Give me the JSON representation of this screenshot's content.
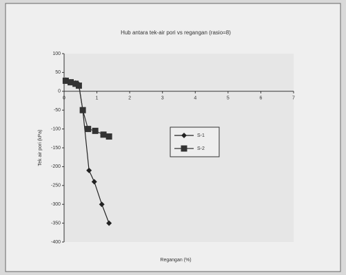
{
  "chart_data": {
    "type": "line",
    "title": "Hub antara tek-air pori vs regangan (rasio=8)",
    "x_label": "Regangan (%)",
    "y_label": "Tek air pori (kPa)",
    "xlim": [
      0,
      7
    ],
    "xticks": [
      0,
      1,
      2,
      3,
      4,
      5,
      6,
      7
    ],
    "ylim": [
      -400,
      100
    ],
    "yticks": [
      100,
      50,
      0,
      -50,
      -100,
      -150,
      -200,
      -250,
      -300,
      -350,
      -400
    ],
    "grid": false,
    "legend": "right",
    "series": [
      {
        "name": "S-1",
        "color": "#222222",
        "marker": "diamond",
        "x": [
          0.05,
          0.2,
          0.35,
          0.45,
          0.57,
          0.76,
          0.92,
          1.15,
          1.37
        ],
        "values": [
          30,
          25,
          22,
          18,
          -50,
          -210,
          -240,
          -300,
          -350
        ]
      },
      {
        "name": "S-2",
        "color": "#333333",
        "marker": "square",
        "x": [
          0.05,
          0.2,
          0.35,
          0.45,
          0.57,
          0.73,
          0.95,
          1.2,
          1.37
        ],
        "values": [
          28,
          24,
          20,
          15,
          -50,
          -100,
          -105,
          -115,
          -120
        ]
      }
    ]
  }
}
